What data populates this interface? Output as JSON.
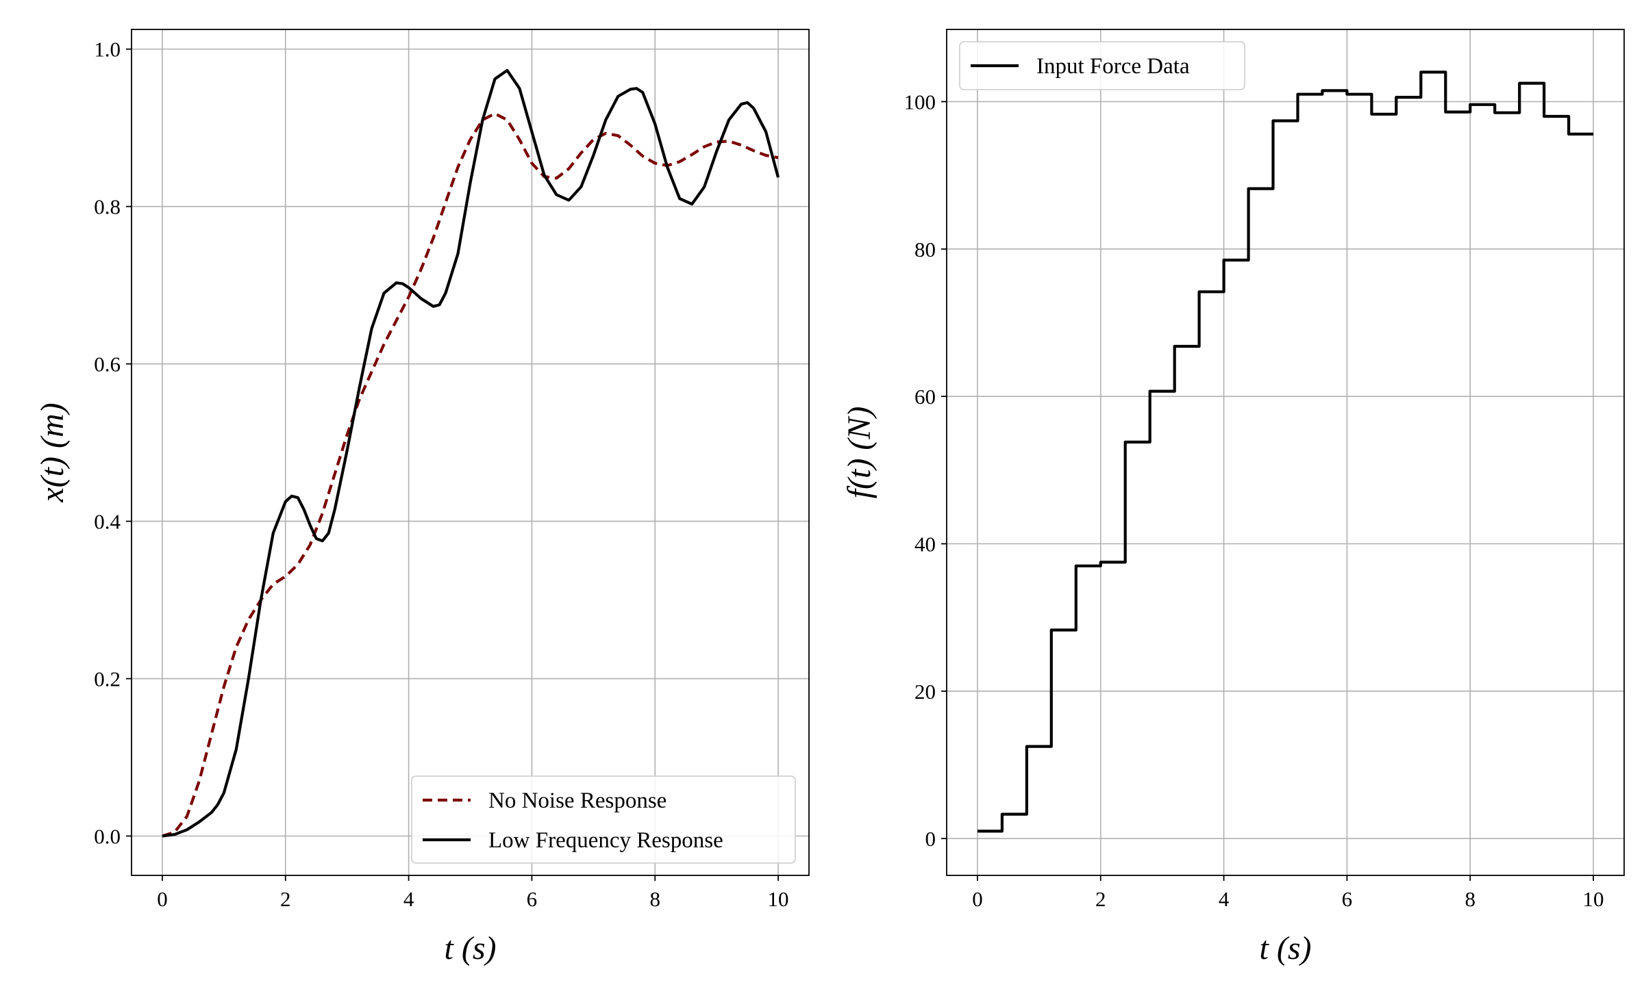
{
  "chart_data": [
    {
      "type": "line",
      "title": "",
      "xlabel": "t (s)",
      "ylabel": "x(t) (m)",
      "xlim": [
        -0.5,
        10.5
      ],
      "ylim": [
        -0.05,
        1.025
      ],
      "xticks": [
        0,
        2,
        4,
        6,
        8,
        10
      ],
      "yticks": [
        0.0,
        0.2,
        0.4,
        0.6,
        0.8,
        1.0
      ],
      "xtick_labels": [
        "0",
        "2",
        "4",
        "6",
        "8",
        "10"
      ],
      "ytick_labels": [
        "0.0",
        "0.2",
        "0.4",
        "0.6",
        "0.8",
        "1.0"
      ],
      "grid": true,
      "legend_position": "bottom-right",
      "series": [
        {
          "name": "No Noise Response",
          "color": "#7b0000",
          "style": "dashed",
          "x": [
            0,
            0.2,
            0.4,
            0.6,
            0.8,
            1.0,
            1.2,
            1.4,
            1.6,
            1.8,
            2.0,
            2.2,
            2.4,
            2.6,
            2.8,
            3.0,
            3.2,
            3.4,
            3.6,
            3.8,
            4.0,
            4.2,
            4.4,
            4.6,
            4.8,
            5.0,
            5.2,
            5.4,
            5.6,
            5.8,
            6.0,
            6.2,
            6.4,
            6.6,
            6.8,
            7.0,
            7.2,
            7.4,
            7.6,
            7.8,
            8.0,
            8.2,
            8.4,
            8.6,
            8.8,
            9.0,
            9.2,
            9.4,
            9.6,
            9.8,
            10.0
          ],
          "y": [
            0.0,
            0.005,
            0.025,
            0.07,
            0.13,
            0.19,
            0.24,
            0.275,
            0.3,
            0.32,
            0.33,
            0.345,
            0.37,
            0.41,
            0.46,
            0.51,
            0.555,
            0.59,
            0.625,
            0.655,
            0.685,
            0.72,
            0.76,
            0.805,
            0.85,
            0.885,
            0.91,
            0.918,
            0.91,
            0.885,
            0.855,
            0.838,
            0.836,
            0.848,
            0.868,
            0.885,
            0.893,
            0.89,
            0.878,
            0.864,
            0.855,
            0.852,
            0.857,
            0.866,
            0.876,
            0.882,
            0.883,
            0.878,
            0.871,
            0.865,
            0.862
          ]
        },
        {
          "name": "Low Frequency Response",
          "color": "#000000",
          "style": "solid",
          "x": [
            0,
            0.2,
            0.4,
            0.6,
            0.8,
            0.9,
            1.0,
            1.2,
            1.4,
            1.6,
            1.8,
            2.0,
            2.1,
            2.2,
            2.3,
            2.4,
            2.5,
            2.6,
            2.7,
            2.8,
            3.0,
            3.2,
            3.4,
            3.6,
            3.8,
            3.9,
            4.0,
            4.2,
            4.4,
            4.5,
            4.6,
            4.8,
            5.0,
            5.2,
            5.4,
            5.6,
            5.8,
            6.0,
            6.2,
            6.4,
            6.6,
            6.8,
            7.0,
            7.2,
            7.4,
            7.6,
            7.7,
            7.8,
            8.0,
            8.2,
            8.4,
            8.6,
            8.8,
            9.0,
            9.2,
            9.4,
            9.5,
            9.6,
            9.8,
            10.0
          ],
          "y": [
            0.0,
            0.002,
            0.008,
            0.018,
            0.03,
            0.04,
            0.055,
            0.11,
            0.2,
            0.3,
            0.385,
            0.425,
            0.432,
            0.43,
            0.415,
            0.395,
            0.378,
            0.375,
            0.385,
            0.415,
            0.49,
            0.57,
            0.645,
            0.69,
            0.703,
            0.702,
            0.697,
            0.683,
            0.673,
            0.675,
            0.69,
            0.74,
            0.83,
            0.91,
            0.962,
            0.973,
            0.95,
            0.895,
            0.84,
            0.815,
            0.808,
            0.825,
            0.865,
            0.91,
            0.94,
            0.949,
            0.95,
            0.945,
            0.905,
            0.85,
            0.81,
            0.803,
            0.825,
            0.87,
            0.91,
            0.93,
            0.932,
            0.925,
            0.895,
            0.837
          ]
        }
      ]
    },
    {
      "type": "line",
      "title": "",
      "xlabel": "t (s)",
      "ylabel": "f(t) (N)",
      "xlim": [
        -0.5,
        10.5
      ],
      "ylim": [
        -5.0,
        109.8
      ],
      "xticks": [
        0,
        2,
        4,
        6,
        8,
        10
      ],
      "yticks": [
        0,
        20,
        40,
        60,
        80,
        100
      ],
      "xtick_labels": [
        "0",
        "2",
        "4",
        "6",
        "8",
        "10"
      ],
      "ytick_labels": [
        "0",
        "20",
        "40",
        "60",
        "80",
        "100"
      ],
      "grid": true,
      "legend_position": "top-left",
      "series": [
        {
          "name": "Input Force Data",
          "color": "#000000",
          "style": "step",
          "x": [
            0.0,
            0.4,
            0.8,
            1.2,
            1.6,
            2.0,
            2.4,
            2.8,
            3.2,
            3.6,
            4.0,
            4.4,
            4.8,
            5.2,
            5.6,
            6.0,
            6.4,
            6.8,
            7.2,
            7.6,
            8.0,
            8.4,
            8.8,
            9.2,
            9.6,
            10.0
          ],
          "y": [
            1.0,
            3.3,
            12.5,
            28.3,
            37.0,
            37.5,
            53.8,
            60.7,
            66.8,
            74.2,
            78.5,
            88.2,
            97.4,
            101.0,
            101.5,
            101.0,
            98.3,
            100.6,
            104.0,
            98.6,
            99.6,
            98.5,
            102.5,
            98.0,
            95.6,
            95.6
          ]
        }
      ]
    }
  ]
}
